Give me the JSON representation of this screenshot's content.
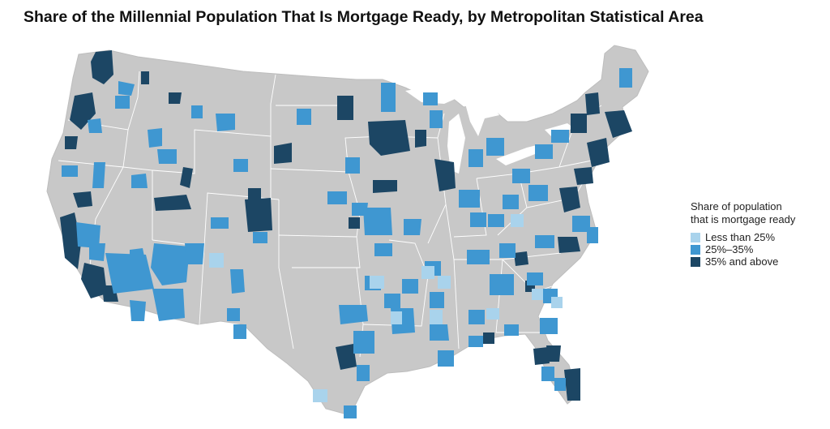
{
  "title": "Share of the Millennial Population That Is Mortgage Ready, by Metropolitan Statistical Area",
  "legend": {
    "title_line1": "Share of population",
    "title_line2": "that is mortgage ready",
    "items": [
      {
        "label": "Less than 25%",
        "color": "#a9d3ec"
      },
      {
        "label": "25%–35%",
        "color": "#3f97d1"
      },
      {
        "label": "35% and above",
        "color": "#1c4664"
      }
    ]
  },
  "colors": {
    "land": "#c8c8c8",
    "border": "#ffffff",
    "low": "#a9d3ec",
    "mid": "#3f97d1",
    "high": "#1c4664"
  }
}
